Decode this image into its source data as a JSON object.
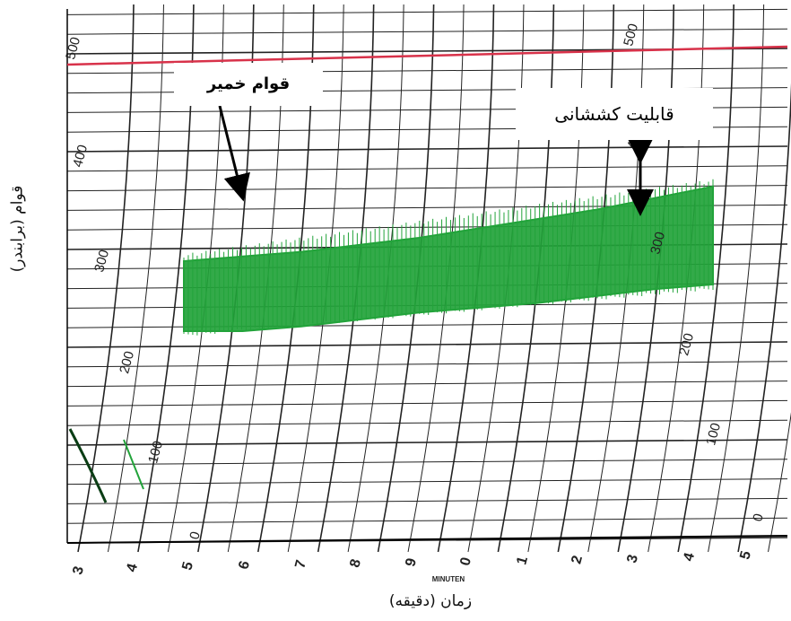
{
  "chart_data": {
    "type": "line",
    "title": "",
    "ylabel": "قوام (برابندر)",
    "xlabel": "زمان (دقیقه)",
    "x_unit_label": "MINUTEN",
    "x_tick_labels": [
      "3",
      "4",
      "5",
      "6",
      "7",
      "8",
      "9",
      "0",
      "1",
      "2",
      "3",
      "4",
      "5"
    ],
    "y_tick_labels": [
      "0",
      "100",
      "200",
      "300",
      "400",
      "500"
    ],
    "ylim": [
      0,
      500
    ],
    "reference_line_y": 500,
    "series": [
      {
        "x": [
          5,
          6,
          7,
          8,
          9,
          10,
          11,
          12,
          13,
          14
        ],
        "band_low": [
          340,
          340,
          342,
          345,
          348,
          350,
          352,
          355,
          358,
          360
        ],
        "band_high": [
          370,
          372,
          374,
          377,
          380,
          384,
          388,
          392,
          397,
          402
        ]
      }
    ],
    "annotations": [
      {
        "id": "consistency",
        "text": "قوام خمیر"
      },
      {
        "id": "extensibility",
        "text": "قابلیت کششانی"
      }
    ],
    "colors": {
      "grid": "#222222",
      "band": "#22a33a",
      "reference": "#d8324a",
      "secondary_trace": "#22a33a"
    }
  }
}
